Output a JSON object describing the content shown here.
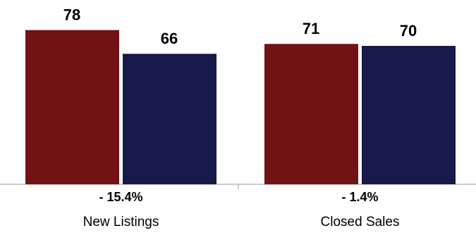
{
  "chart_data": {
    "type": "bar",
    "categories": [
      "New Listings",
      "Closed Sales"
    ],
    "changes": [
      "- 15.4%",
      "- 1.4%"
    ],
    "series": [
      {
        "values": [
          78,
          66
        ],
        "color": "#731215"
      },
      {
        "values": [
          71,
          70
        ],
        "color": "#171a49"
      }
    ],
    "ylim": [
      0,
      100
    ],
    "grid": false,
    "legend": "none"
  }
}
